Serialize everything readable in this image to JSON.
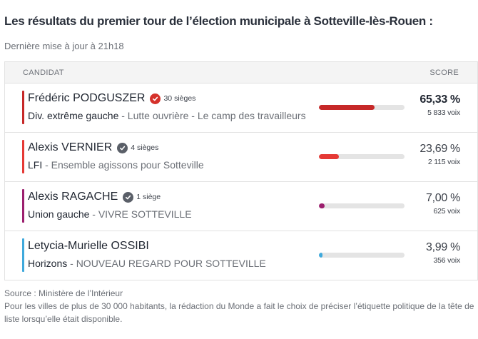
{
  "title": "Les résultats du premier tour de l’élection municipale à Sotteville-lès-Rouen :",
  "update": "Dernière mise à jour à 21h18",
  "table": {
    "header_candidate": "CANDIDAT",
    "header_score": "SCORE",
    "rows": [
      {
        "name": "Frédéric PODGUSZER",
        "seats": "30 sièges",
        "seat_icon_color": "#d5312b",
        "party": "Div. extrême gauche",
        "list": " - Lutte ouvrière - Le camp des travailleurs",
        "pct": "65,33 %",
        "pct_value": 65.33,
        "votes": "5 833 voix",
        "color": "#c62828",
        "winner": true
      },
      {
        "name": "Alexis VERNIER",
        "seats": "4 sièges",
        "seat_icon_color": "#5a5f68",
        "party": "LFI",
        "list": " - Ensemble agissons pour Sotteville",
        "pct": "23,69 %",
        "pct_value": 23.69,
        "votes": "2 115 voix",
        "color": "#e53935",
        "winner": false
      },
      {
        "name": "Alexis RAGACHE",
        "seats": "1 siège",
        "seat_icon_color": "#5a5f68",
        "party": "Union gauche",
        "list": " - VIVRE SOTTEVILLE",
        "pct": "7,00 %",
        "pct_value": 7.0,
        "votes": "625 voix",
        "color": "#9c1f6e",
        "winner": false
      },
      {
        "name": "Letycia-Murielle OSSIBI",
        "seats": "",
        "seat_icon_color": "",
        "party": "Horizons",
        "list": " - NOUVEAU REGARD POUR SOTTEVILLE",
        "pct": "3,99 %",
        "pct_value": 3.99,
        "votes": "356 voix",
        "color": "#3fa9dc",
        "winner": false
      }
    ]
  },
  "footer": {
    "source": "Source : Ministère de l’Intérieur",
    "note": "Pour les villes de plus de 30 000 habitants, la rédaction du Monde a fait le choix de préciser l’étiquette politique de la tête de liste lorsqu’elle était disponible."
  }
}
